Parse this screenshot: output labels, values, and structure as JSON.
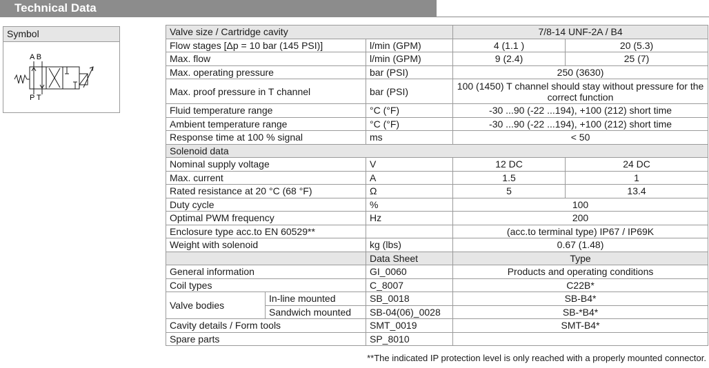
{
  "header": {
    "title": "Technical Data"
  },
  "symbol": {
    "title": "Symbol",
    "port_top": "A B",
    "port_bottom": "P T"
  },
  "table": {
    "valve_size_label": "Valve size / Cartridge cavity",
    "valve_size_value": "7/8-14 UNF-2A / B4",
    "flow_stages_label": "Flow stages [Δp = 10 bar (145 PSI)]",
    "flow_stages_unit": "l/min (GPM)",
    "flow_stages_v1": "4 (1.1 )",
    "flow_stages_v2": "20 (5.3)",
    "max_flow_label": "Max. flow",
    "max_flow_unit": "l/min (GPM)",
    "max_flow_v1": "9 (2.4)",
    "max_flow_v2": "25 (7)",
    "max_pressure_label": "Max. operating pressure",
    "max_pressure_unit": "bar (PSI)",
    "max_pressure_value": "250 (3630)",
    "proof_pressure_label": "Max. proof pressure in T channel",
    "proof_pressure_unit": "bar (PSI)",
    "proof_pressure_value": "100 (1450) T channel should stay without pressure for the correct function",
    "fluid_temp_label": "Fluid temperature range",
    "fluid_temp_unit": "°C (°F)",
    "fluid_temp_value": "-30 ...90 (-22 ...194), +100 (212) short time",
    "ambient_temp_label": "Ambient temperature range",
    "ambient_temp_unit": "°C (°F)",
    "ambient_temp_value": "-30 ...90 (-22 ...194), +100 (212) short time",
    "response_label": "Response time at 100 % signal",
    "response_unit": "ms",
    "response_value": "< 50",
    "solenoid_section": "Solenoid data",
    "voltage_label": "Nominal supply voltage",
    "voltage_unit": "V",
    "voltage_v1": "12 DC",
    "voltage_v2": "24 DC",
    "current_label": "Max. current",
    "current_unit": "A",
    "current_v1": "1.5",
    "current_v2": "1",
    "resistance_label": "Rated resistance at 20 °C (68 °F)",
    "resistance_unit": "Ω",
    "resistance_v1": "5",
    "resistance_v2": "13.4",
    "duty_label": "Duty cycle",
    "duty_unit": "%",
    "duty_value": "100",
    "pwm_label": "Optimal PWM frequency",
    "pwm_unit": "Hz",
    "pwm_value": "200",
    "enclosure_label": "Enclosure type acc.to EN 60529**",
    "enclosure_value": "(acc.to terminal type) IP67 / IP69K",
    "weight_label": "Weight with solenoid",
    "weight_unit": "kg (lbs)",
    "weight_value": "0.67 (1.48)",
    "datasheet_header": "Data Sheet",
    "type_header": "Type",
    "general_label": "General information",
    "general_sheet": "GI_0060",
    "general_type": "Products and operating conditions",
    "coil_label": "Coil types",
    "coil_sheet": "C_8007",
    "coil_type": "C22B*",
    "valve_bodies_label": "Valve bodies",
    "inline_label": "In-line mounted",
    "inline_sheet": "SB_0018",
    "inline_type": "SB-B4*",
    "sandwich_label": "Sandwich mounted",
    "sandwich_sheet": "SB-04(06)_0028",
    "sandwich_type": "SB-*B4*",
    "cavity_label": "Cavity details / Form tools",
    "cavity_sheet": "SMT_0019",
    "cavity_type": "SMT-B4*",
    "spare_label": "Spare parts",
    "spare_sheet": "SP_8010",
    "spare_type": ""
  },
  "footnote": "**The indicated IP protection level is only reached with a properly mounted connector."
}
